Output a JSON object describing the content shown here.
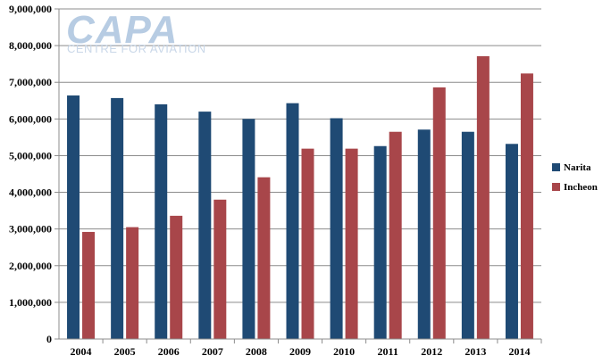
{
  "logo": {
    "main": "CAPA",
    "sub": "CENTRE FOR AVIATION"
  },
  "chart_data": {
    "type": "bar",
    "categories": [
      "2004",
      "2005",
      "2006",
      "2007",
      "2008",
      "2009",
      "2010",
      "2011",
      "2012",
      "2013",
      "2014"
    ],
    "series": [
      {
        "name": "Narita",
        "color": "#1f4a74",
        "values": [
          6640000,
          6570000,
          6400000,
          6200000,
          6000000,
          6430000,
          6020000,
          5260000,
          5710000,
          5650000,
          5320000
        ]
      },
      {
        "name": "Incheon",
        "color": "#a8464a",
        "values": [
          2920000,
          3050000,
          3360000,
          3800000,
          4410000,
          5190000,
          5190000,
          5650000,
          6860000,
          7710000,
          7240000
        ]
      }
    ],
    "yticks": [
      "0",
      "1,000,000",
      "2,000,000",
      "3,000,000",
      "4,000,000",
      "5,000,000",
      "6,000,000",
      "7,000,000",
      "8,000,000",
      "9,000,000"
    ],
    "ylim": [
      0,
      9000000
    ],
    "grid": true,
    "legend": "right",
    "title": "",
    "xlabel": "",
    "ylabel": ""
  }
}
